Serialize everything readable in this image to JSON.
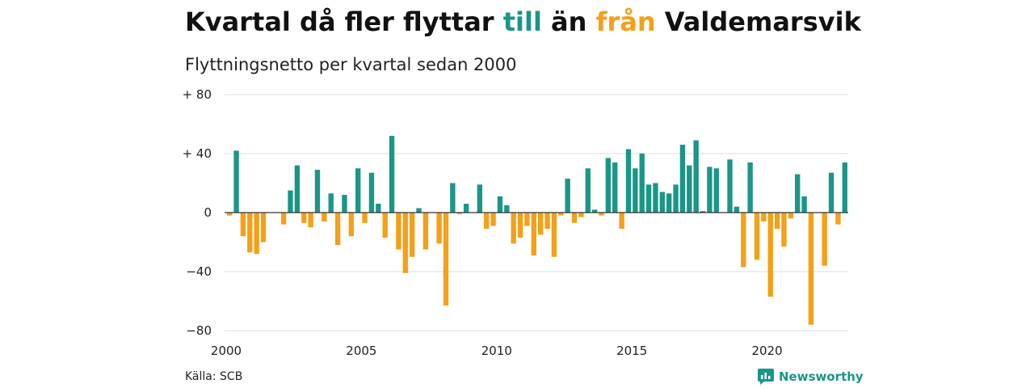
{
  "title": {
    "part1": "Kvartal då fler flyttar ",
    "word_till": "till",
    "part2": " än ",
    "word_fran": "från",
    "part3": " Valdemarsvik"
  },
  "subtitle": "Flyttningsnetto per kvartal sedan 2000",
  "source": "Källa: SCB",
  "brand": {
    "name": "Newsworthy",
    "icon": "newsworthy-logo-icon"
  },
  "colors": {
    "positive": "#1a9688",
    "negative": "#f4a019",
    "grid": "#dddddd",
    "zero": "#333333"
  },
  "chart_data": {
    "type": "bar",
    "xlim": [
      2000,
      2023
    ],
    "ylim": [
      -80,
      80
    ],
    "grid": true,
    "x_ticks": [
      2000,
      2005,
      2010,
      2015,
      2020
    ],
    "x_tick_labels": [
      "2000",
      "2005",
      "2010",
      "2015",
      "2020"
    ],
    "y_ticks": [
      80,
      40,
      0,
      -40,
      -80
    ],
    "y_tick_labels": [
      "+ 80",
      "+ 40",
      "0",
      "−40",
      "−80"
    ],
    "series": [
      {
        "start_year": 2000,
        "period": "quarter",
        "values": [
          -2,
          42,
          -16,
          -27,
          -28,
          -20,
          0,
          0,
          -8,
          15,
          32,
          -7,
          -10,
          29,
          -6,
          13,
          -22,
          12,
          -16,
          30,
          -7,
          27,
          6,
          -17,
          52,
          -25,
          -41,
          -30,
          3,
          -25,
          0,
          -21,
          -63,
          20,
          -1,
          6,
          0,
          19,
          -11,
          -9,
          11,
          5,
          -21,
          -17,
          -9,
          -29,
          -15,
          -11,
          -30,
          -2,
          23,
          -7,
          -3,
          30,
          2,
          -2,
          37,
          34,
          -11,
          43,
          30,
          40,
          19,
          20,
          14,
          13,
          19,
          46,
          32,
          49,
          1,
          31,
          30,
          0,
          36,
          4,
          -37,
          34,
          -32,
          -6,
          -57,
          -11,
          -23,
          -4,
          26,
          11,
          -76,
          0,
          -36,
          27,
          -8,
          34
        ]
      }
    ]
  }
}
